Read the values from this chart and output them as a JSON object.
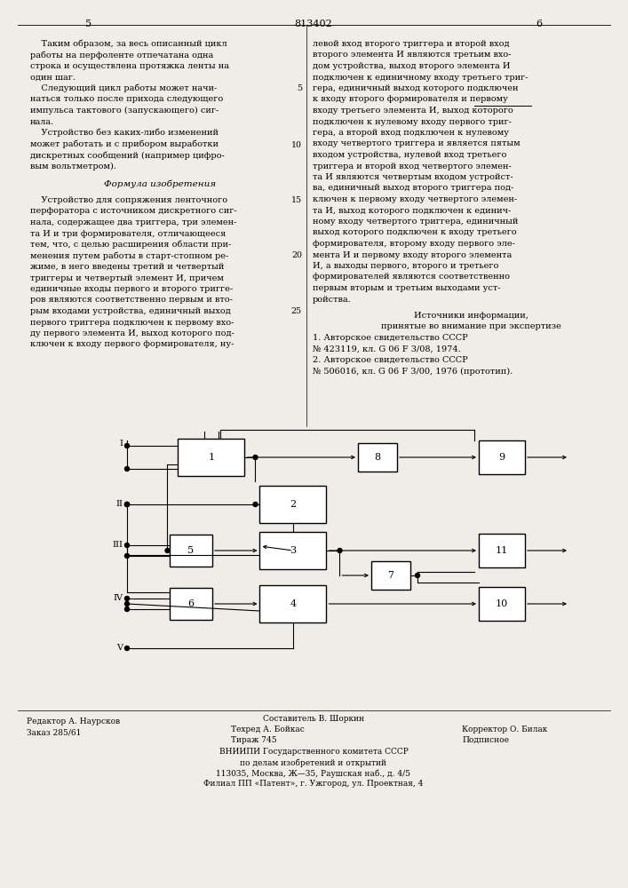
{
  "bg_color": "#f0ede8",
  "page_num_left": "5",
  "page_num_center": "813402",
  "page_num_right": "6",
  "footer_left1": "Редактор А. Наурсков",
  "footer_left2": "Заказ 285/61",
  "footer_center1": "Составитель В. Шоркин",
  "footer_center2": "Техред А. Бойкас",
  "footer_center3": "Тираж 745",
  "footer_right1": "Корректор О. Билак",
  "footer_right2": "Подписное",
  "footer_org1": "ВНИИПИ Государственного комитета СССР",
  "footer_org2": "по делам изобретений и открытий",
  "footer_org3": "113035, Москва, Ж—35, Раушская наб., д. 4/5",
  "footer_org4": "Филиал ПП «Патент», г. Ужгород, ул. Проектная, 4"
}
